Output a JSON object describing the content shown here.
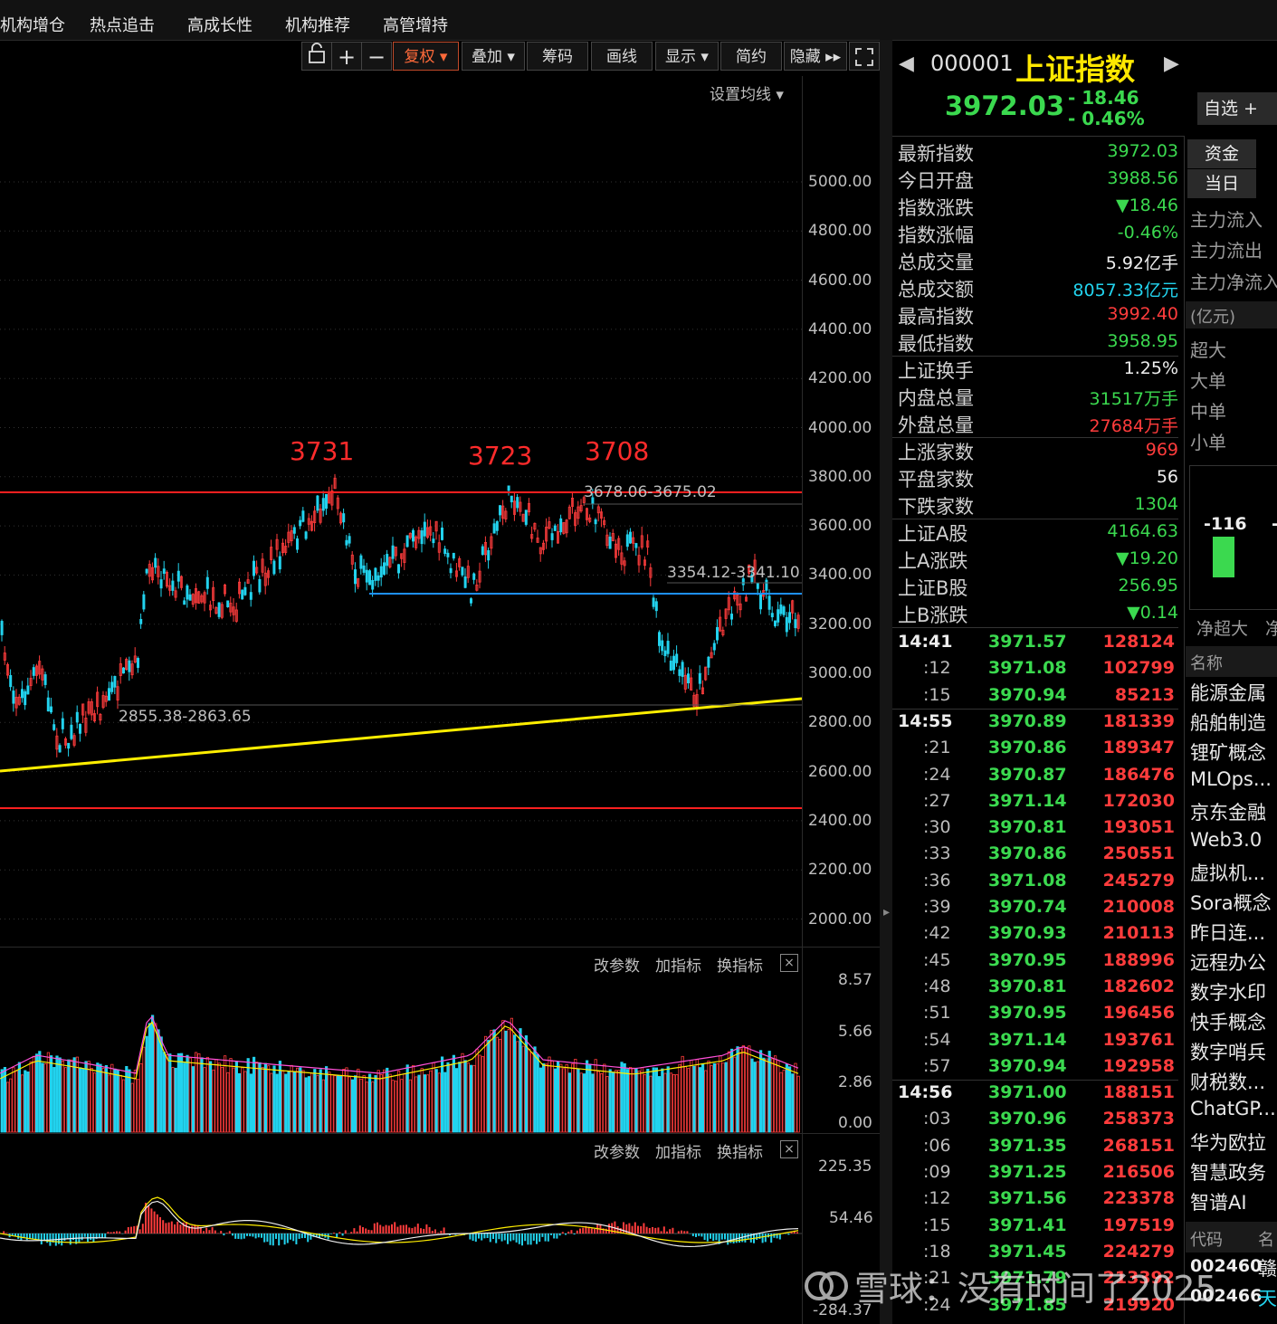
{
  "nav": [
    "机构增仓",
    "热点追击",
    "高成长性",
    "机构推荐",
    "高管增持"
  ],
  "toolbar": {
    "buttons": [
      "复权 ▾",
      "叠加 ▾",
      "筹码",
      "画线",
      "显示 ▾",
      "简约",
      "隐藏 ▸▸"
    ],
    "lock_icon": "lock-icon",
    "plus": "+",
    "minus": "−",
    "expand_icon": "expand-icon"
  },
  "chart_header": {
    "ma_setting": "设置均线 ▾"
  },
  "main_chart": {
    "y_ticks": [
      "5000.00",
      "4800.00",
      "4600.00",
      "4400.00",
      "4200.00",
      "4000.00",
      "3800.00",
      "3600.00",
      "3400.00",
      "3200.00",
      "3000.00",
      "2800.00",
      "2600.00",
      "2400.00",
      "2200.00",
      "2000.00"
    ],
    "peaks": [
      "3731",
      "3723",
      "3708"
    ],
    "annotations": [
      "3678.06-3675.02",
      "3354.12-3341.10",
      "2855.38-2863.65"
    ]
  },
  "indicator_panel": {
    "buttons": [
      "改参数",
      "加指标",
      "换指标"
    ],
    "close": "×"
  },
  "volume_chart": {
    "y_ticks": [
      "8.57",
      "5.66",
      "2.86",
      "0.00"
    ]
  },
  "macd_chart": {
    "y_ticks": [
      "225.35",
      "54.46",
      "-284.37"
    ]
  },
  "quote": {
    "code": "000001",
    "name": "上证指数",
    "price": "3972.03",
    "change": "- 18.46",
    "change_pct": "- 0.46%",
    "watchlist_btn": "自选 +"
  },
  "stats": [
    {
      "label": "最新指数",
      "value": "3972.03",
      "color": "green"
    },
    {
      "label": "今日开盘",
      "value": "3988.56",
      "color": "green"
    },
    {
      "label": "指数涨跌",
      "value": "▼18.46",
      "color": "green"
    },
    {
      "label": "指数涨幅",
      "value": "-0.46%",
      "color": "green"
    },
    {
      "label": "总成交量",
      "value": "5.92亿手",
      "color": "white"
    },
    {
      "label": "总成交额",
      "value": "8057.33亿元",
      "color": "cyan"
    },
    {
      "label": "最高指数",
      "value": "3992.40",
      "color": "red"
    },
    {
      "label": "最低指数",
      "value": "3958.95",
      "color": "green"
    },
    {
      "label": "上证换手",
      "value": "1.25%",
      "color": "white"
    },
    {
      "label": "内盘总量",
      "value": "31517万手",
      "color": "green"
    },
    {
      "label": "外盘总量",
      "value": "27684万手",
      "color": "red"
    },
    {
      "label": "上涨家数",
      "value": "969",
      "color": "red"
    },
    {
      "label": "平盘家数",
      "value": "56",
      "color": "white"
    },
    {
      "label": "下跌家数",
      "value": "1304",
      "color": "green"
    },
    {
      "label": "上证A股",
      "value": "4164.63",
      "color": "green"
    },
    {
      "label": "上A涨跌",
      "value": "▼19.20",
      "color": "green"
    },
    {
      "label": "上证B股",
      "value": "256.95",
      "color": "green"
    },
    {
      "label": "上B涨跌",
      "value": "▼0.14",
      "color": "green"
    }
  ],
  "ticks": [
    {
      "t": "14:41",
      "p": "3971.57",
      "v": "128124"
    },
    {
      "t": ":12",
      "p": "3971.08",
      "v": "102799"
    },
    {
      "t": ":15",
      "p": "3970.94",
      "v": "85213"
    },
    {
      "t": "14:55",
      "p": "3970.89",
      "v": "181339"
    },
    {
      "t": ":21",
      "p": "3970.86",
      "v": "189347"
    },
    {
      "t": ":24",
      "p": "3970.87",
      "v": "186476"
    },
    {
      "t": ":27",
      "p": "3971.14",
      "v": "172030"
    },
    {
      "t": ":30",
      "p": "3970.81",
      "v": "193051"
    },
    {
      "t": ":33",
      "p": "3970.86",
      "v": "250551"
    },
    {
      "t": ":36",
      "p": "3971.08",
      "v": "245279"
    },
    {
      "t": ":39",
      "p": "3970.74",
      "v": "210008"
    },
    {
      "t": ":42",
      "p": "3970.93",
      "v": "210113"
    },
    {
      "t": ":45",
      "p": "3970.95",
      "v": "188996"
    },
    {
      "t": ":48",
      "p": "3970.81",
      "v": "182602"
    },
    {
      "t": ":51",
      "p": "3970.95",
      "v": "196456"
    },
    {
      "t": ":54",
      "p": "3971.14",
      "v": "193761"
    },
    {
      "t": ":57",
      "p": "3970.94",
      "v": "192958"
    },
    {
      "t": "14:56",
      "p": "3971.00",
      "v": "188151"
    },
    {
      "t": ":03",
      "p": "3970.96",
      "v": "258373"
    },
    {
      "t": ":06",
      "p": "3971.35",
      "v": "268151"
    },
    {
      "t": ":09",
      "p": "3971.25",
      "v": "216506"
    },
    {
      "t": ":12",
      "p": "3971.56",
      "v": "223378"
    },
    {
      "t": ":15",
      "p": "3971.41",
      "v": "197519"
    },
    {
      "t": ":18",
      "p": "3971.45",
      "v": "224279"
    },
    {
      "t": ":21",
      "p": "3971.79",
      "v": "213392"
    },
    {
      "t": ":24",
      "p": "3971.85",
      "v": "219920"
    }
  ],
  "side": {
    "tabs": [
      "资金",
      "当日"
    ],
    "flow_labels": [
      "主力流入",
      "主力流出",
      "主力净流入"
    ],
    "unit": "(亿元)",
    "order_sizes": [
      "超大",
      "大单",
      "中单",
      "小单"
    ],
    "bar_value": "-116",
    "bar_value2": "-",
    "net_label": "净超大",
    "net_label2": "净",
    "col_name": "名称",
    "concepts": [
      "能源金属",
      "船舶制造",
      "锂矿概念",
      "MLOps...",
      "京东金融",
      "Web3.0",
      "虚拟机...",
      "Sora概念",
      "昨日连...",
      "远程办公",
      "数字水印",
      "快手概念",
      "数字哨兵",
      "财税数...",
      "ChatGP...",
      "华为欧拉",
      "智慧政务",
      "智谱AI"
    ],
    "col_code": "代码",
    "col_name2": "名",
    "codes": [
      {
        "code": "002460",
        "name": "赣"
      },
      {
        "code": "002466",
        "name": "天"
      }
    ]
  },
  "watermark": "雪球：没有时间了2025"
}
